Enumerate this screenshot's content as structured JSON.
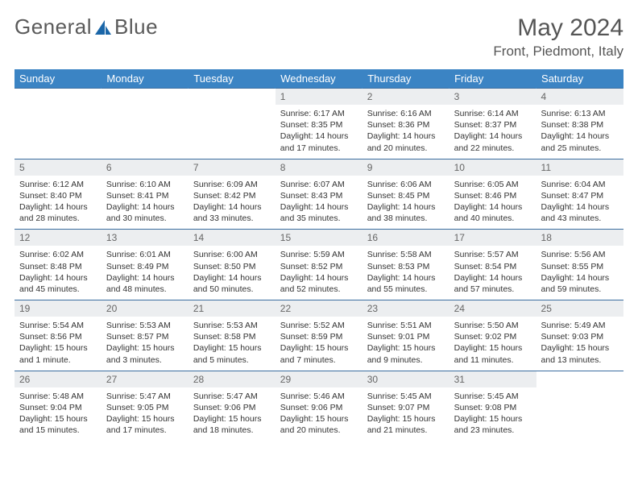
{
  "brand": {
    "part1": "General",
    "part2": "Blue"
  },
  "colors": {
    "header_bg": "#3b84c4",
    "header_text": "#ffffff",
    "daynum_bg": "#eceef0",
    "border": "#3b6ea0",
    "logo_blue": "#1a66a8",
    "text": "#333333"
  },
  "title": "May 2024",
  "location": "Front, Piedmont, Italy",
  "weekdays": [
    "Sunday",
    "Monday",
    "Tuesday",
    "Wednesday",
    "Thursday",
    "Friday",
    "Saturday"
  ],
  "weeks": [
    [
      {
        "date": "",
        "text": ""
      },
      {
        "date": "",
        "text": ""
      },
      {
        "date": "",
        "text": ""
      },
      {
        "date": "1",
        "text": "Sunrise: 6:17 AM\nSunset: 8:35 PM\nDaylight: 14 hours and 17 minutes."
      },
      {
        "date": "2",
        "text": "Sunrise: 6:16 AM\nSunset: 8:36 PM\nDaylight: 14 hours and 20 minutes."
      },
      {
        "date": "3",
        "text": "Sunrise: 6:14 AM\nSunset: 8:37 PM\nDaylight: 14 hours and 22 minutes."
      },
      {
        "date": "4",
        "text": "Sunrise: 6:13 AM\nSunset: 8:38 PM\nDaylight: 14 hours and 25 minutes."
      }
    ],
    [
      {
        "date": "5",
        "text": "Sunrise: 6:12 AM\nSunset: 8:40 PM\nDaylight: 14 hours and 28 minutes."
      },
      {
        "date": "6",
        "text": "Sunrise: 6:10 AM\nSunset: 8:41 PM\nDaylight: 14 hours and 30 minutes."
      },
      {
        "date": "7",
        "text": "Sunrise: 6:09 AM\nSunset: 8:42 PM\nDaylight: 14 hours and 33 minutes."
      },
      {
        "date": "8",
        "text": "Sunrise: 6:07 AM\nSunset: 8:43 PM\nDaylight: 14 hours and 35 minutes."
      },
      {
        "date": "9",
        "text": "Sunrise: 6:06 AM\nSunset: 8:45 PM\nDaylight: 14 hours and 38 minutes."
      },
      {
        "date": "10",
        "text": "Sunrise: 6:05 AM\nSunset: 8:46 PM\nDaylight: 14 hours and 40 minutes."
      },
      {
        "date": "11",
        "text": "Sunrise: 6:04 AM\nSunset: 8:47 PM\nDaylight: 14 hours and 43 minutes."
      }
    ],
    [
      {
        "date": "12",
        "text": "Sunrise: 6:02 AM\nSunset: 8:48 PM\nDaylight: 14 hours and 45 minutes."
      },
      {
        "date": "13",
        "text": "Sunrise: 6:01 AM\nSunset: 8:49 PM\nDaylight: 14 hours and 48 minutes."
      },
      {
        "date": "14",
        "text": "Sunrise: 6:00 AM\nSunset: 8:50 PM\nDaylight: 14 hours and 50 minutes."
      },
      {
        "date": "15",
        "text": "Sunrise: 5:59 AM\nSunset: 8:52 PM\nDaylight: 14 hours and 52 minutes."
      },
      {
        "date": "16",
        "text": "Sunrise: 5:58 AM\nSunset: 8:53 PM\nDaylight: 14 hours and 55 minutes."
      },
      {
        "date": "17",
        "text": "Sunrise: 5:57 AM\nSunset: 8:54 PM\nDaylight: 14 hours and 57 minutes."
      },
      {
        "date": "18",
        "text": "Sunrise: 5:56 AM\nSunset: 8:55 PM\nDaylight: 14 hours and 59 minutes."
      }
    ],
    [
      {
        "date": "19",
        "text": "Sunrise: 5:54 AM\nSunset: 8:56 PM\nDaylight: 15 hours and 1 minute."
      },
      {
        "date": "20",
        "text": "Sunrise: 5:53 AM\nSunset: 8:57 PM\nDaylight: 15 hours and 3 minutes."
      },
      {
        "date": "21",
        "text": "Sunrise: 5:53 AM\nSunset: 8:58 PM\nDaylight: 15 hours and 5 minutes."
      },
      {
        "date": "22",
        "text": "Sunrise: 5:52 AM\nSunset: 8:59 PM\nDaylight: 15 hours and 7 minutes."
      },
      {
        "date": "23",
        "text": "Sunrise: 5:51 AM\nSunset: 9:01 PM\nDaylight: 15 hours and 9 minutes."
      },
      {
        "date": "24",
        "text": "Sunrise: 5:50 AM\nSunset: 9:02 PM\nDaylight: 15 hours and 11 minutes."
      },
      {
        "date": "25",
        "text": "Sunrise: 5:49 AM\nSunset: 9:03 PM\nDaylight: 15 hours and 13 minutes."
      }
    ],
    [
      {
        "date": "26",
        "text": "Sunrise: 5:48 AM\nSunset: 9:04 PM\nDaylight: 15 hours and 15 minutes."
      },
      {
        "date": "27",
        "text": "Sunrise: 5:47 AM\nSunset: 9:05 PM\nDaylight: 15 hours and 17 minutes."
      },
      {
        "date": "28",
        "text": "Sunrise: 5:47 AM\nSunset: 9:06 PM\nDaylight: 15 hours and 18 minutes."
      },
      {
        "date": "29",
        "text": "Sunrise: 5:46 AM\nSunset: 9:06 PM\nDaylight: 15 hours and 20 minutes."
      },
      {
        "date": "30",
        "text": "Sunrise: 5:45 AM\nSunset: 9:07 PM\nDaylight: 15 hours and 21 minutes."
      },
      {
        "date": "31",
        "text": "Sunrise: 5:45 AM\nSunset: 9:08 PM\nDaylight: 15 hours and 23 minutes."
      },
      {
        "date": "",
        "text": ""
      }
    ]
  ]
}
